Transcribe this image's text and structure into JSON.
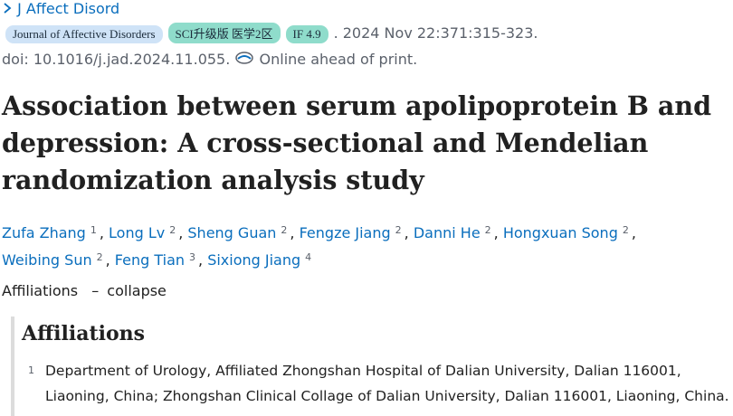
{
  "header": {
    "journal_link": "J Affect Disord",
    "badges": [
      "Journal of Affective Disorders",
      "SCI升级版 医学2区",
      "IF 4.9"
    ],
    "citation": ". 2024 Nov 22:371:315-323.",
    "doi": "doi: 10.1016/j.jad.2024.11.055.",
    "status": "Online ahead of print."
  },
  "title_lines": [
    "Association between serum apolipoprotein B and",
    "depression: A cross-sectional and Mendelian",
    "randomization analysis study"
  ],
  "author_separator": ",",
  "authors": [
    {
      "name": "Zufa Zhang",
      "affiliation": 1
    },
    {
      "name": "Long Lv",
      "affiliation": 2
    },
    {
      "name": "Sheng Guan",
      "affiliation": 2
    },
    {
      "name": "Fengze Jiang",
      "affiliation": 2
    },
    {
      "name": "Danni He",
      "affiliation": 2
    },
    {
      "name": "Hongxuan Song",
      "affiliation": 2
    },
    {
      "name": "Weibing Sun",
      "affiliation": 2
    },
    {
      "name": "Feng Tian",
      "affiliation": 3
    },
    {
      "name": "Sixiong Jiang",
      "affiliation": 4
    }
  ],
  "affiliations_toggle": {
    "label": "Affiliations",
    "dash": "–",
    "action": "collapse"
  },
  "affiliations": {
    "heading": "Affiliations",
    "items": [
      {
        "number": 1,
        "lines": [
          "Department of Urology, Affiliated Zhongshan Hospital of Dalian University, Dalian 116001,",
          "Liaoning, China; Zhongshan Clinical Collage of Dalian University, Dalian 116001, Liaoning, China."
        ]
      }
    ]
  }
}
